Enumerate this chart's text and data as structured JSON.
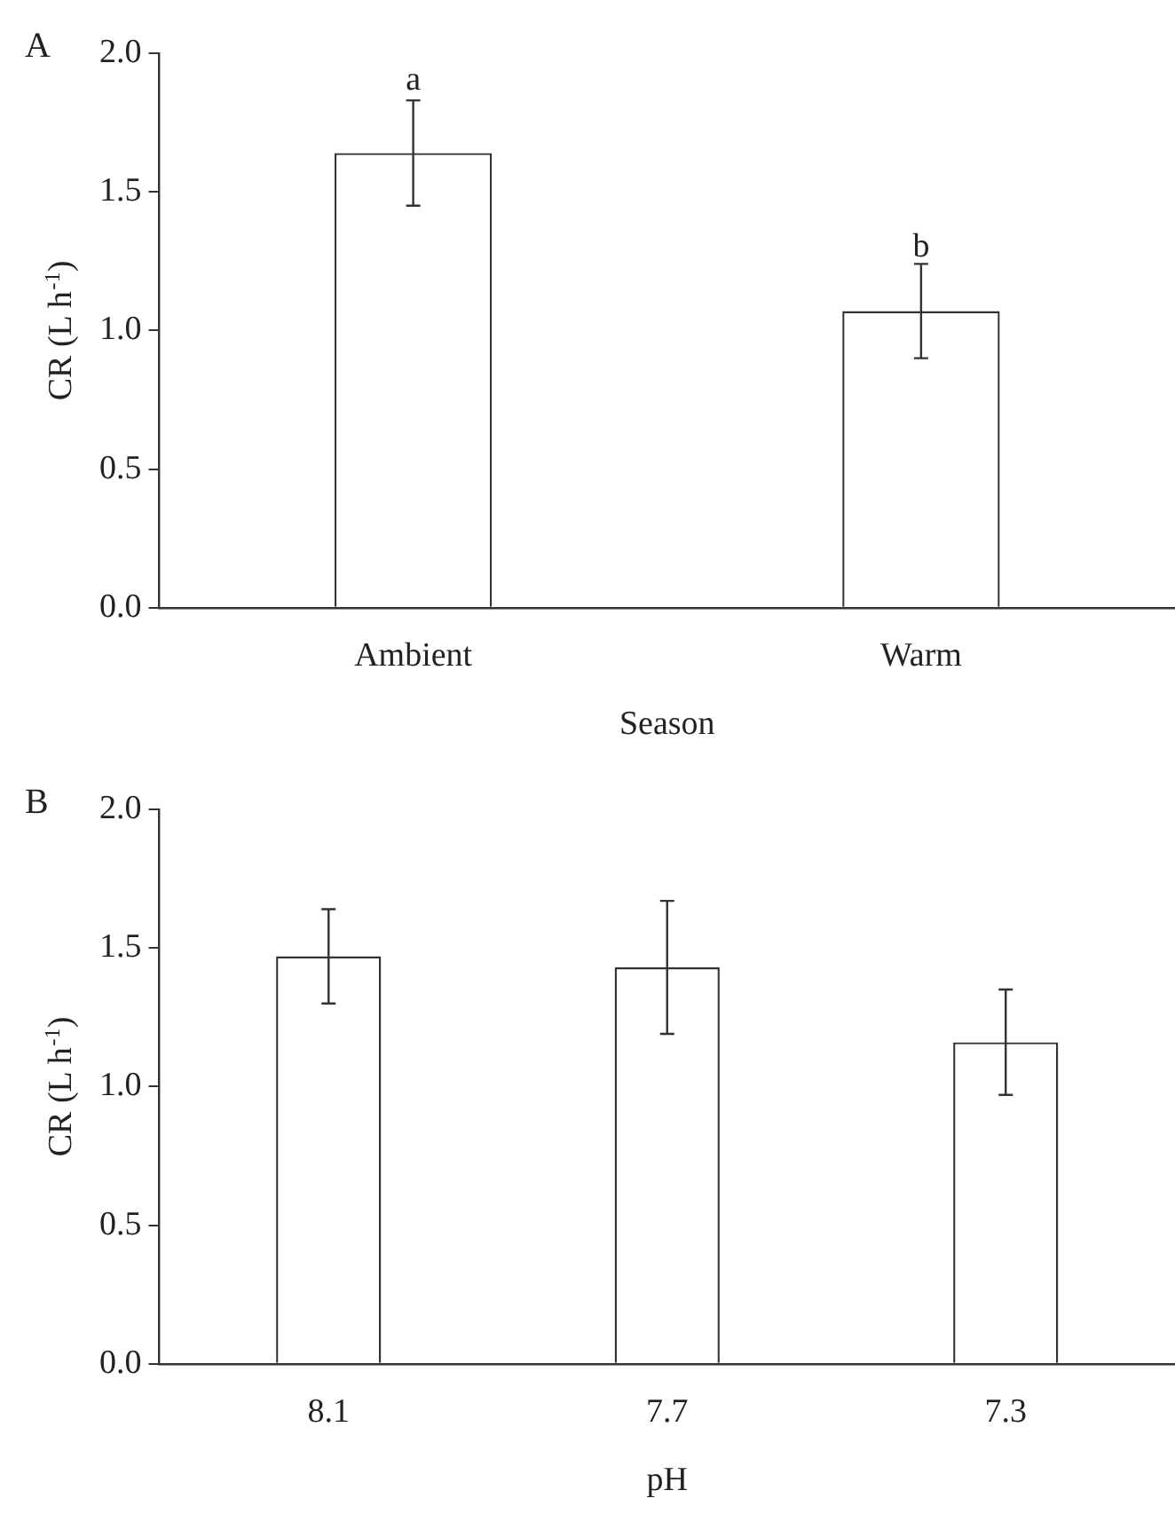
{
  "chart_data": [
    {
      "type": "bar",
      "title": "A",
      "xlabel": "Season",
      "ylabel": "CR (L h$^{-1}$)",
      "categories": [
        "Ambient",
        "Warm"
      ],
      "values": [
        1.64,
        1.07
      ],
      "errors": [
        0.19,
        0.17
      ],
      "color": "#ffffff",
      "ylim": [
        0,
        2
      ],
      "yticks": [
        {
          "value": 0,
          "label": "0.0"
        },
        {
          "value": 0.5,
          "label": "0.5"
        },
        {
          "value": 1,
          "label": "1.0"
        },
        {
          "value": 1.5,
          "label": "1.5"
        },
        {
          "value": 2,
          "label": "2.0"
        }
      ],
      "grid": false,
      "legend": false,
      "annotations": [
        {
          "text": "a",
          "x": "Ambient",
          "y": 1.83
        },
        {
          "text": "b",
          "x": "Warm",
          "y": 1.23
        }
      ]
    },
    {
      "type": "bar",
      "title": "B",
      "xlabel": "pH",
      "ylabel": "CR (L h$^{-1}$)",
      "categories": [
        "8.1",
        "7.7",
        "7.3"
      ],
      "values": [
        1.47,
        1.43,
        1.16
      ],
      "errors": [
        0.17,
        0.24,
        0.19
      ],
      "color": "#ffffff",
      "ylim": [
        0,
        2
      ],
      "yticks": [
        {
          "value": 0,
          "label": "0.0"
        },
        {
          "value": 0.5,
          "label": "0.5"
        },
        {
          "value": 1,
          "label": "1.0"
        },
        {
          "value": 1.5,
          "label": "1.5"
        },
        {
          "value": 2,
          "label": "2.0"
        }
      ],
      "grid": false,
      "legend": false
    }
  ]
}
